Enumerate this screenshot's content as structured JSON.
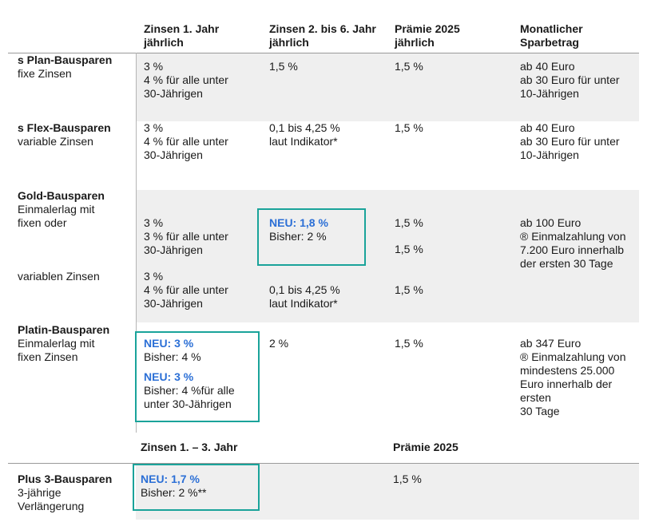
{
  "header": {
    "col1": [
      "Zinsen 1. Jahr",
      "jährlich"
    ],
    "col2": [
      "Zinsen 2. bis 6. Jahr",
      "jährlich"
    ],
    "col3": [
      "Prämie 2025",
      "jährlich"
    ],
    "col4": [
      "Monatlicher",
      "Sparbetrag"
    ]
  },
  "rows": {
    "plan": {
      "name": "s Plan-Bausparen",
      "sub": [
        "fixe Zinsen"
      ],
      "c1": [
        "3 %",
        "4 % für alle unter",
        "30-Jährigen"
      ],
      "c2": [
        "1,5 %"
      ],
      "c3": [
        "1,5 %"
      ],
      "c4": [
        "ab 40 Euro",
        "ab 30 Euro für unter",
        "10-Jährigen"
      ]
    },
    "flex": {
      "name": "s Flex-Bausparen",
      "sub": [
        "variable Zinsen"
      ],
      "c1": [
        "3 %",
        "4 % für alle unter",
        "30-Jährigen"
      ],
      "c2": [
        "0,1 bis 4,25 %",
        "laut Indikator*"
      ],
      "c3": [
        "1,5 %"
      ],
      "c4": [
        "ab 40 Euro",
        "ab 30 Euro für unter",
        "10-Jährigen"
      ]
    },
    "gold": {
      "name": "Gold-Bausparen",
      "sub": [
        "Einmalerlag mit",
        "fixen oder"
      ],
      "sub2": "variablen Zinsen",
      "c1a": [
        "3 %",
        "3 % für alle unter",
        "30-Jährigen"
      ],
      "c1b": [
        "3 %",
        "4 % für alle unter",
        "30-Jährigen"
      ],
      "c2a_neu": "NEU: 1,8 %",
      "c2a_old": "Bisher: 2 %",
      "c2b": [
        "0,1 bis 4,25 %",
        "laut Indikator*"
      ],
      "c3a": "1,5 %",
      "c3b": "1,5 %",
      "c3c": "1,5 %",
      "c4": [
        "ab 100 Euro",
        "® Einmalzahlung von",
        "7.200 Euro innerhalb",
        "der ersten 30 Tage"
      ]
    },
    "platin": {
      "name": "Platin-Bausparen",
      "sub": [
        "Einmalerlag mit",
        "fixen Zinsen"
      ],
      "c1_neu1": "NEU: 3 %",
      "c1_old1": "Bisher: 4 %",
      "c1_neu2": "NEU: 3 %",
      "c1_old2": [
        "Bisher: 4 %für alle",
        "unter 30-Jährigen"
      ],
      "c2": "2 %",
      "c3": "1,5 %",
      "c4": [
        "ab 347 Euro",
        "® Einmalzahlung von",
        "mindestens 25.000",
        "Euro innerhalb der",
        "ersten",
        "30 Tage"
      ]
    }
  },
  "header2": {
    "col1": "Zinsen 1. – 3. Jahr",
    "col3": "Prämie 2025"
  },
  "plus": {
    "name": "Plus 3-Bausparen",
    "sub": [
      "3-jährige",
      "Verlängerung"
    ],
    "c1_neu": "NEU: 1,7 %",
    "c1_old": "Bisher: 2 %**",
    "c3": "1,5 %"
  },
  "colors": {
    "band": "#efefef",
    "neu": "#2b6fd6",
    "box": "#1aa39a"
  }
}
